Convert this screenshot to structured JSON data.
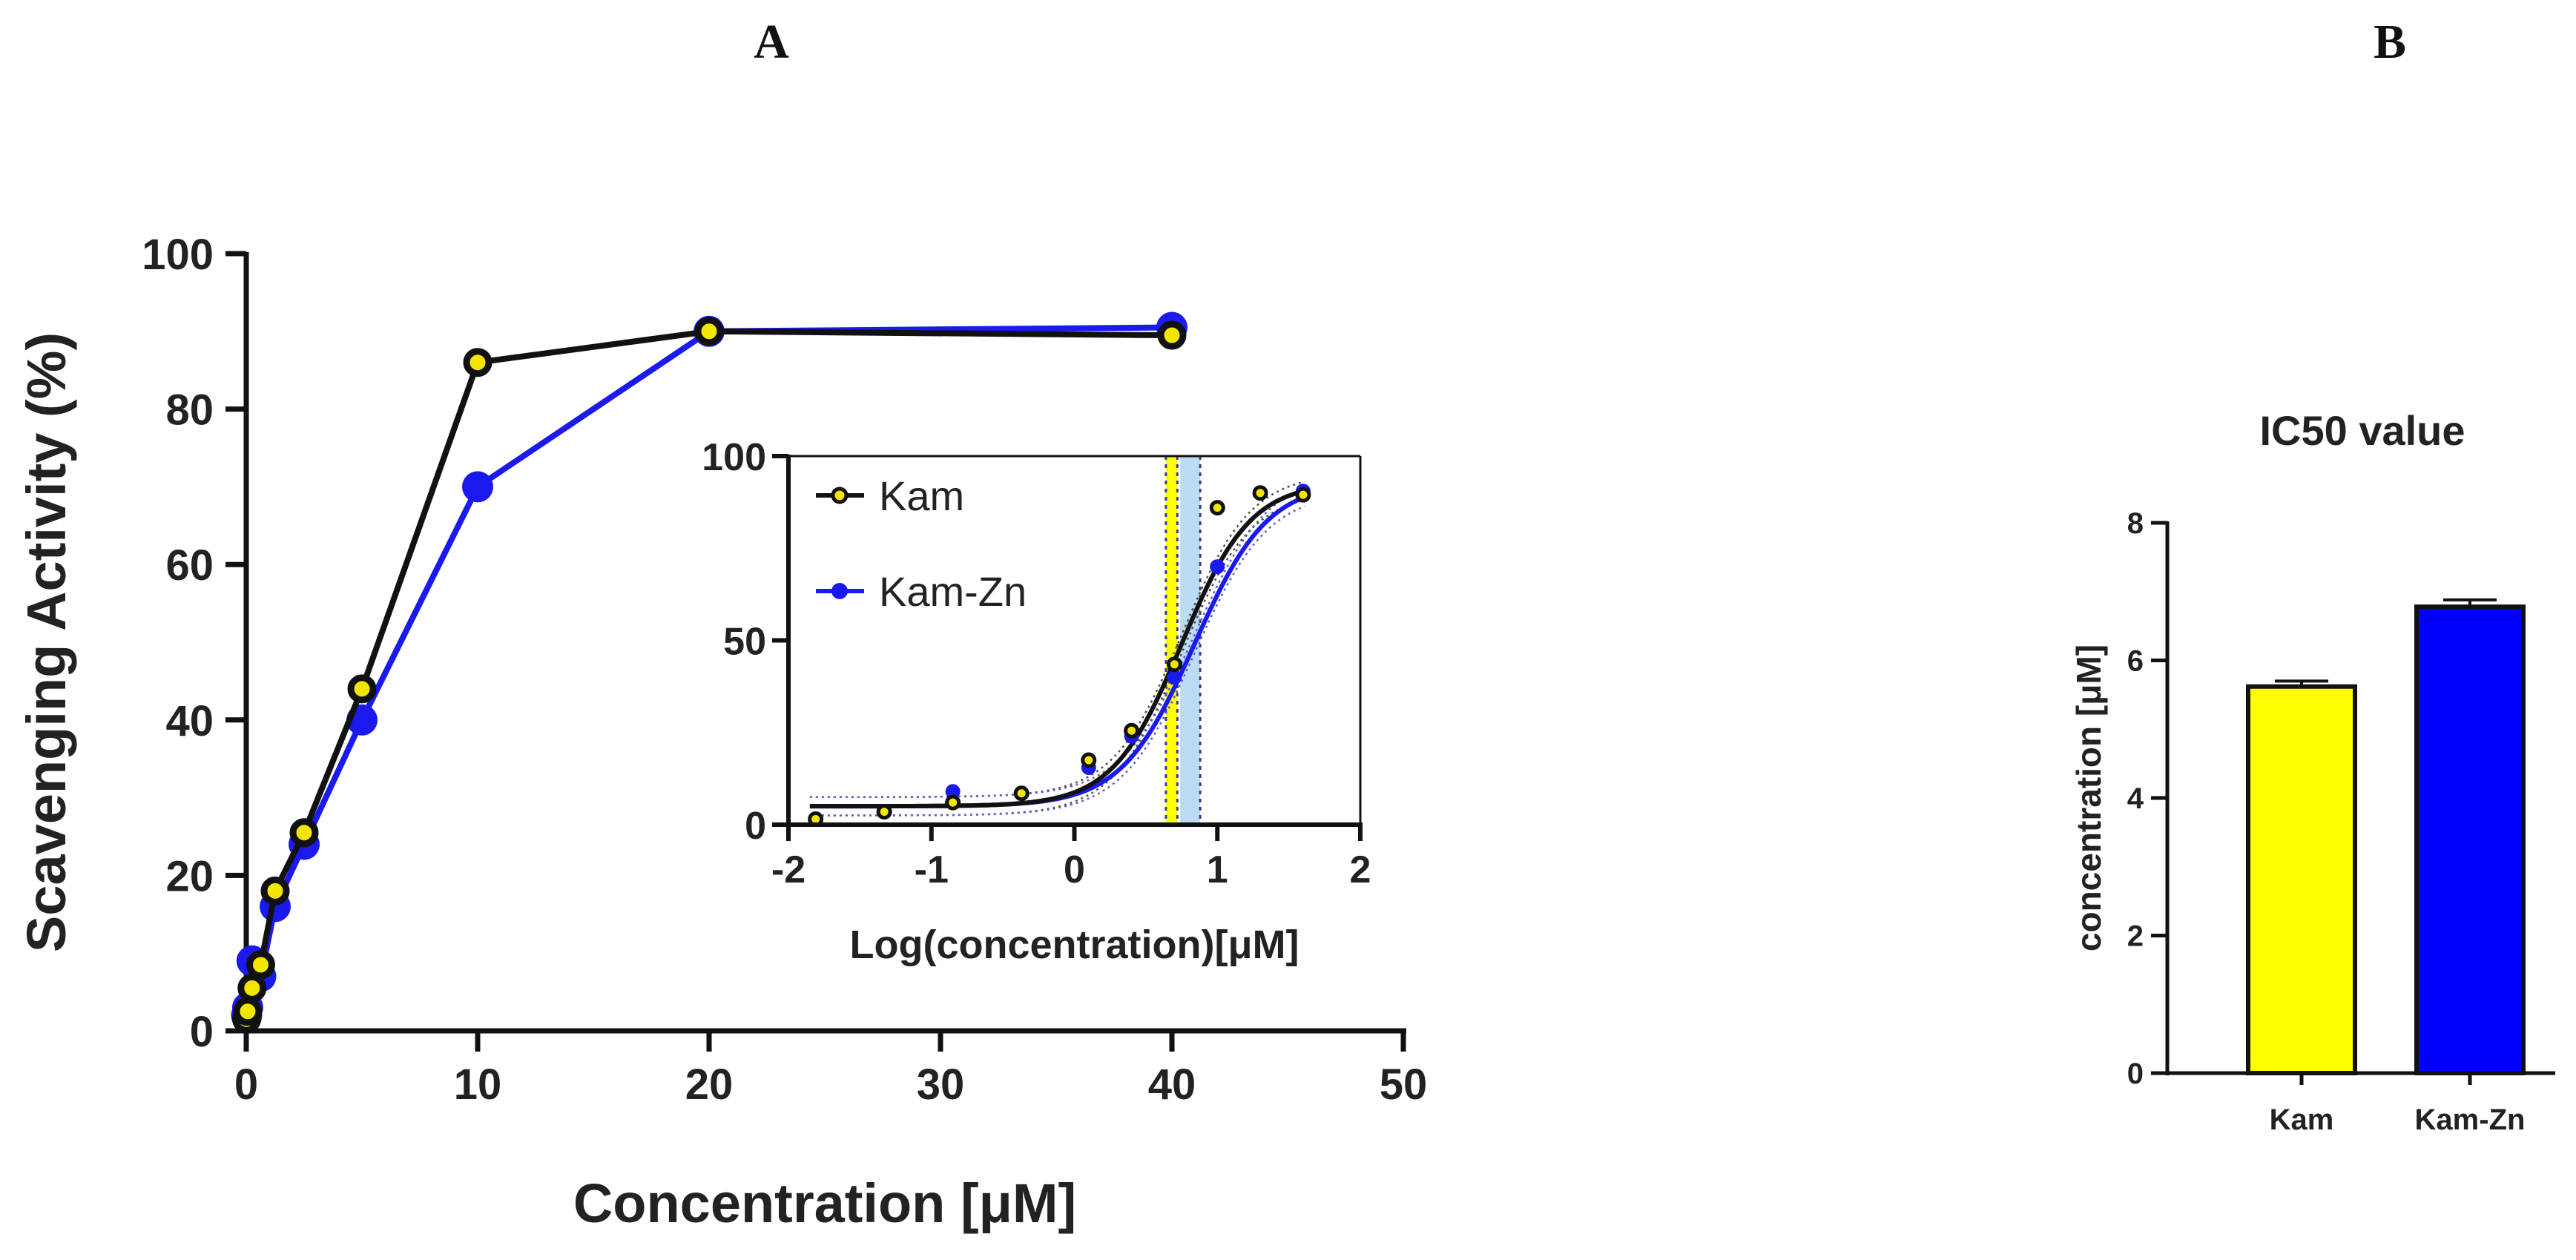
{
  "labels": {
    "panel_a": "A",
    "panel_b": "B"
  },
  "colors": {
    "kam_line": "#111111",
    "kam_marker_fill": "#f2e600",
    "kam_zn": "#1a1aee",
    "kam_bar": "#ffff00",
    "kam_zn_bar": "#0000ff",
    "kam_band": "#ffff00",
    "kam_zn_band": "#bcdcf3"
  },
  "chart_data": [
    {
      "id": "main",
      "type": "line",
      "title": "",
      "xlabel": "Concentration [μM]",
      "ylabel": "Scavenging Activity (%)",
      "xlim": [
        0,
        50
      ],
      "ylim": [
        0,
        100
      ],
      "xticks": [
        0,
        10,
        20,
        30,
        40,
        50
      ],
      "yticks": [
        0,
        20,
        40,
        60,
        80,
        100
      ],
      "series": [
        {
          "name": "Kam-Zn",
          "x": [
            0.015625,
            0.0625,
            0.25,
            0.625,
            1.25,
            2.5,
            5,
            10,
            20,
            40
          ],
          "y": [
            2,
            3,
            9,
            7,
            16,
            24,
            40,
            70,
            90,
            90.5
          ]
        },
        {
          "name": "Kam",
          "x": [
            0.015625,
            0.0625,
            0.25,
            0.625,
            1.25,
            2.5,
            5,
            10,
            20,
            40
          ],
          "y": [
            1.5,
            2.5,
            5.5,
            8.5,
            18,
            25.5,
            44,
            86,
            90,
            89.5
          ]
        }
      ]
    },
    {
      "id": "inset",
      "type": "scatter",
      "title": "",
      "xlabel": "Log(concentration)[μM]",
      "ylabel": "",
      "xlim": [
        -2,
        2
      ],
      "ylim": [
        0,
        100
      ],
      "xticks": [
        -2,
        -1,
        0,
        1,
        2
      ],
      "yticks": [
        0,
        50,
        100
      ],
      "legend": [
        "Kam",
        "Kam-Zn"
      ],
      "series": [
        {
          "name": "Kam",
          "x": [
            -1.81,
            -1.33,
            -0.85,
            -0.37,
            0.1,
            0.4,
            0.7,
            1.0,
            1.3,
            1.6
          ],
          "y": [
            1.5,
            3.5,
            6,
            8.5,
            17.5,
            25.5,
            43.5,
            86,
            90,
            89.5
          ],
          "fit": {
            "bottom": 5,
            "top": 93,
            "log_ic50": 0.75,
            "hill": 1.8
          },
          "ic50_band": [
            0.64,
            0.72
          ]
        },
        {
          "name": "Kam-Zn",
          "x": [
            -0.85,
            0.1,
            0.4,
            0.7,
            1.0,
            1.6
          ],
          "y": [
            9,
            15.5,
            24,
            40,
            70,
            90.5
          ],
          "fit": {
            "bottom": 5,
            "top": 93,
            "log_ic50": 0.84,
            "hill": 1.7
          },
          "ic50_band": [
            0.74,
            0.88
          ]
        }
      ]
    },
    {
      "id": "ic50",
      "type": "bar",
      "title": "IC50 value",
      "xlabel": "",
      "ylabel": "concentration [μM]",
      "categories": [
        "Kam",
        "Kam-Zn"
      ],
      "values": [
        5.62,
        6.78
      ],
      "errors": [
        0.08,
        0.1
      ],
      "ylim": [
        0,
        8
      ],
      "yticks": [
        0,
        2,
        4,
        6,
        8
      ]
    }
  ]
}
